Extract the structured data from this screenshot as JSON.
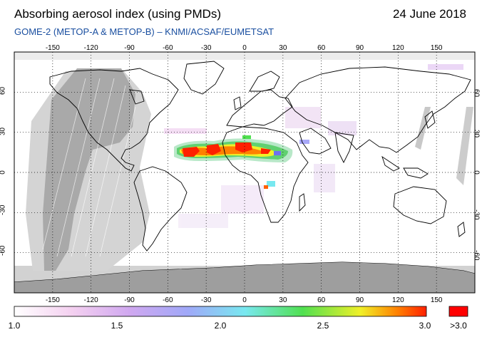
{
  "header": {
    "title": "Absorbing aerosol index (using PMDs)",
    "date": "24 June 2018",
    "subtitle": "GOME-2 (METOP-A & METOP-B)  –  KNMI/ACSAF/EUMETSAT"
  },
  "map": {
    "lon_range": [
      -180,
      180
    ],
    "lat_range": [
      -90,
      90
    ],
    "lon_ticks": [
      "-150",
      "-120",
      "-90",
      "-60",
      "-30",
      "0",
      "30",
      "60",
      "90",
      "120",
      "150"
    ],
    "lat_ticks": [
      "60",
      "30",
      "0",
      "-30",
      "-60"
    ],
    "grid": true,
    "colors": {
      "ocean": "#ffffff",
      "land_outline": "#000000",
      "no_data_light": "#d2d2d2",
      "no_data_dark": "#a8a8a8",
      "grid": "#000000"
    }
  },
  "colorbar": {
    "labels": [
      "1.0",
      "1.5",
      "2.0",
      "2.5",
      "3.0",
      ">3.0"
    ],
    "min": 1.0,
    "max": 3.0,
    "stops": [
      "#ffffff",
      "#f4c8f0",
      "#a8a8f8",
      "#78e8f0",
      "#50e050",
      "#f0f028",
      "#ff8000",
      "#ff2000"
    ],
    "overflow_color": "#ff0000"
  }
}
